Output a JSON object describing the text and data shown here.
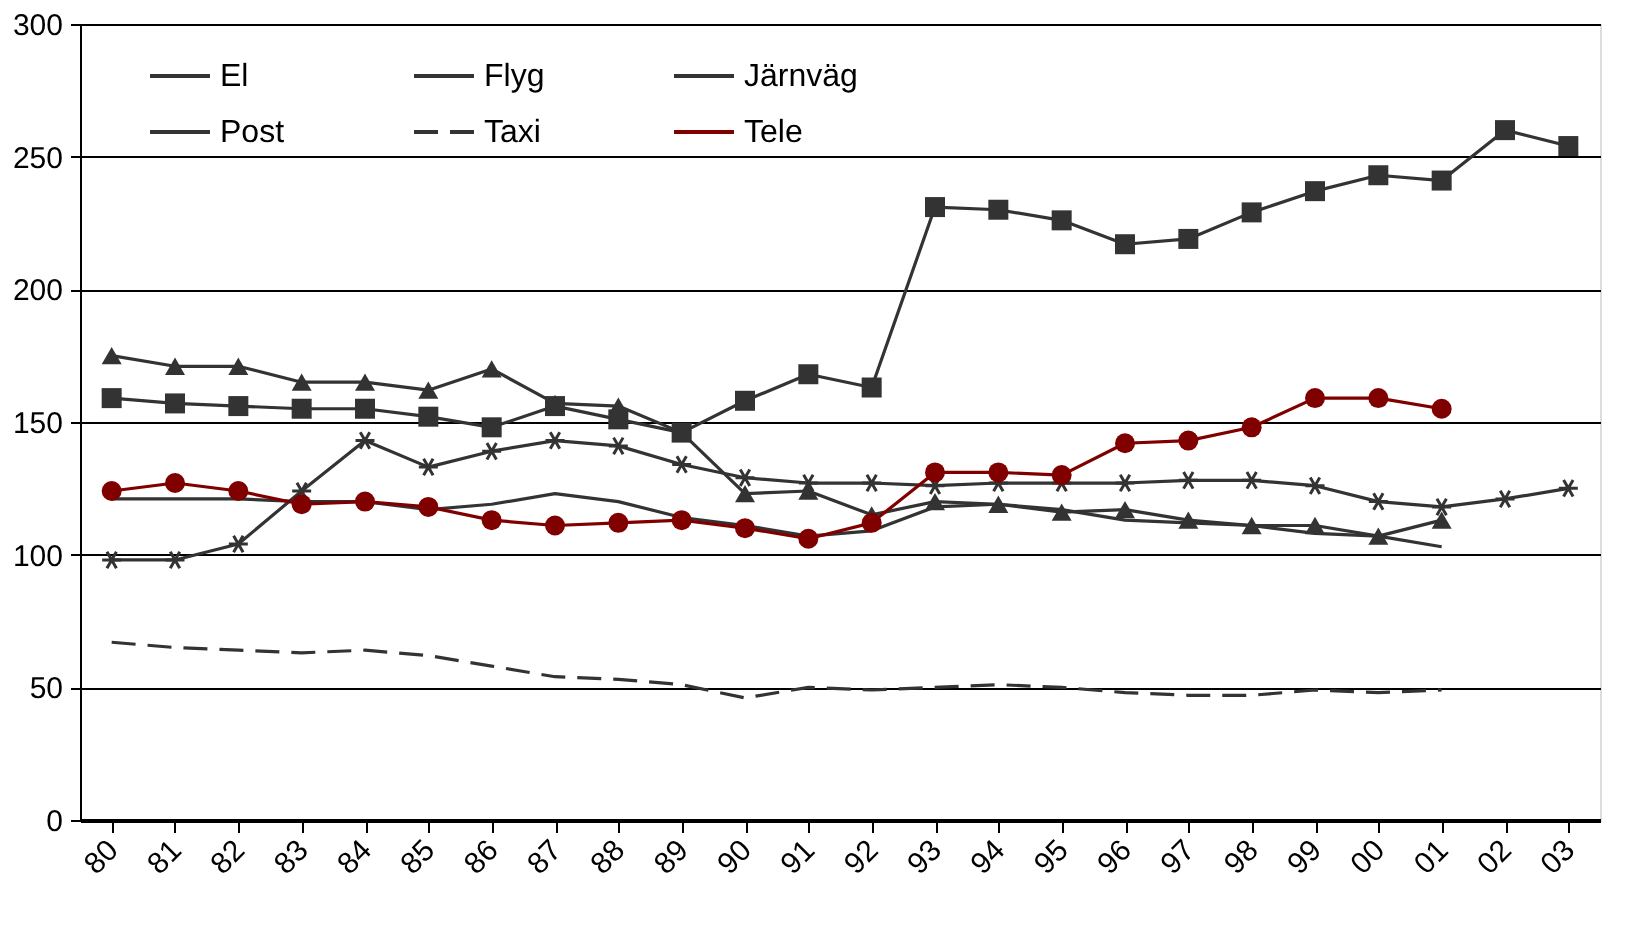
{
  "chart_data": {
    "type": "line",
    "categories": [
      "80",
      "81",
      "82",
      "83",
      "84",
      "85",
      "86",
      "87",
      "88",
      "89",
      "90",
      "91",
      "92",
      "93",
      "94",
      "95",
      "96",
      "97",
      "98",
      "99",
      "00",
      "01",
      "02",
      "03"
    ],
    "ylim": [
      0,
      300
    ],
    "yticks": [
      0,
      50,
      100,
      150,
      200,
      250,
      300
    ],
    "grid": "y",
    "legend": "top",
    "series": [
      {
        "name": "El",
        "color": "#333333",
        "marker": "cross",
        "line_style": "solid",
        "values": [
          98,
          98,
          104,
          124,
          143,
          133,
          139,
          143,
          141,
          134,
          129,
          127,
          127,
          126,
          127,
          127,
          127,
          128,
          128,
          126,
          120,
          118,
          121,
          125
        ]
      },
      {
        "name": "Flyg",
        "color": "#333333",
        "marker": "square",
        "line_style": "solid",
        "values": [
          159,
          157,
          156,
          155,
          155,
          152,
          148,
          156,
          151,
          146,
          158,
          168,
          163,
          231,
          230,
          226,
          217,
          219,
          229,
          237,
          243,
          241,
          260,
          254
        ]
      },
      {
        "name": "Järnväg",
        "color": "#333333",
        "marker": "triangle",
        "line_style": "solid",
        "values": [
          175,
          171,
          171,
          165,
          165,
          162,
          170,
          157,
          156,
          146,
          123,
          124,
          115,
          120,
          119,
          116,
          117,
          113,
          111,
          111,
          107,
          113,
          null,
          null
        ]
      },
      {
        "name": "Post",
        "color": "#333333",
        "marker": "none",
        "line_style": "solid",
        "values": [
          121,
          121,
          121,
          120,
          120,
          117,
          119,
          123,
          120,
          114,
          111,
          107,
          109,
          118,
          119,
          117,
          113,
          112,
          111,
          108,
          107,
          103,
          null,
          null
        ]
      },
      {
        "name": "Taxi",
        "color": "#333333",
        "marker": "none",
        "line_style": "dashed",
        "values": [
          67,
          65,
          64,
          63,
          64,
          62,
          58,
          54,
          53,
          51,
          46,
          50,
          49,
          50,
          51,
          50,
          48,
          47,
          47,
          49,
          48,
          49,
          null,
          null
        ]
      },
      {
        "name": "Tele",
        "color": "#800000",
        "marker": "circle",
        "line_style": "solid",
        "values": [
          124,
          127,
          124,
          119,
          120,
          118,
          113,
          111,
          112,
          113,
          110,
          106,
          112,
          131,
          131,
          130,
          142,
          143,
          148,
          159,
          159,
          155,
          null,
          null
        ]
      }
    ]
  }
}
